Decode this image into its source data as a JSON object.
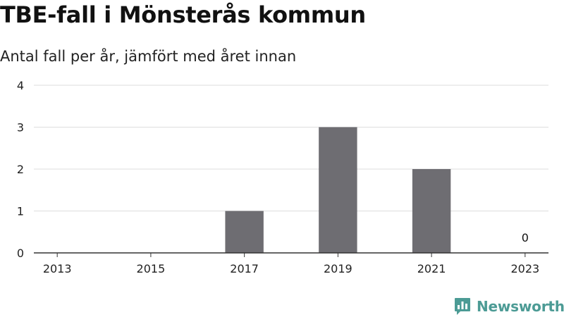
{
  "header": {
    "title": "TBE-fall i Mönsterås kommun",
    "subtitle": "Antal fall per år, jämfört med året innan"
  },
  "brand": {
    "name": "Newsworthy",
    "logo_icon": "bar-chart-speech-bubble-icon"
  },
  "colors": {
    "bar": "#6e6d72",
    "grid": "#dddddd",
    "axis": "#333333",
    "brand": "#4c9b95"
  },
  "chart_data": {
    "type": "bar",
    "title": "TBE-fall i Mönsterås kommun",
    "subtitle": "Antal fall per år, jämfört med året innan",
    "xlabel": "",
    "ylabel": "",
    "ylim": [
      0,
      4
    ],
    "yticks": [
      0,
      1,
      2,
      3,
      4
    ],
    "categories": [
      "2013",
      "2014",
      "2015",
      "2016",
      "2017",
      "2018",
      "2019",
      "2020",
      "2021",
      "2022",
      "2023"
    ],
    "x_tick_labels": [
      "2013",
      "2015",
      "2017",
      "2019",
      "2021",
      "2023"
    ],
    "values": [
      0,
      0,
      0,
      0,
      1,
      0,
      3,
      0,
      2,
      0,
      0
    ],
    "data_labels": [
      {
        "category": "2023",
        "text": "0"
      }
    ],
    "grid": true,
    "legend": "none"
  }
}
